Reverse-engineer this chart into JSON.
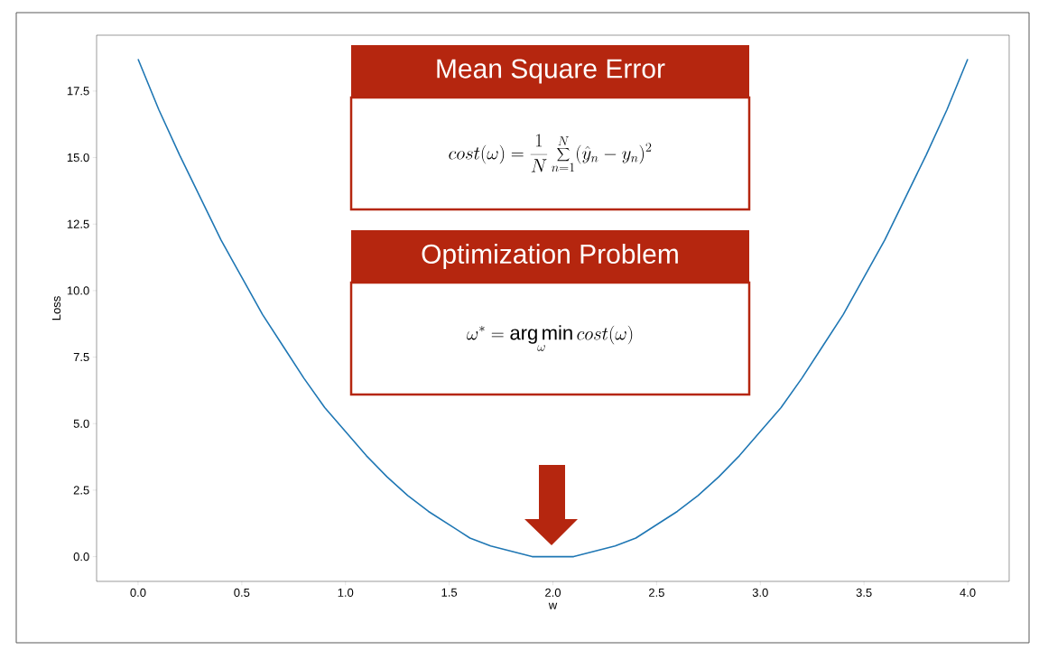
{
  "chart_data": {
    "type": "line",
    "xlabel": "w",
    "ylabel": "Loss",
    "x": [
      0,
      0.1,
      0.2,
      0.3,
      0.4,
      0.5,
      0.6,
      0.7,
      0.8,
      0.9,
      1.0,
      1.1,
      1.2,
      1.3,
      1.4,
      1.5,
      1.6,
      1.7,
      1.8,
      1.9,
      2.0,
      2.1,
      2.2,
      2.3,
      2.4,
      2.5,
      2.6,
      2.7,
      2.8,
      2.9,
      3.0,
      3.1,
      3.2,
      3.3,
      3.4,
      3.5,
      3.6,
      3.7,
      3.8,
      3.9,
      4.0
    ],
    "values": [
      18.7,
      16.8,
      15.1,
      13.5,
      11.9,
      10.5,
      9.1,
      7.9,
      6.7,
      5.6,
      4.7,
      3.8,
      3.0,
      2.3,
      1.7,
      1.2,
      0.7,
      0.4,
      0.2,
      0.0,
      0.0,
      0.0,
      0.2,
      0.4,
      0.7,
      1.2,
      1.7,
      2.3,
      3.0,
      3.8,
      4.7,
      5.6,
      6.7,
      7.9,
      9.1,
      10.5,
      11.9,
      13.5,
      15.1,
      16.8,
      18.7
    ],
    "color": "#1f77b4",
    "xlim": [
      -0.2,
      4.2
    ],
    "ylim": [
      -0.93,
      19.6
    ],
    "xticks": [
      {
        "value": 0,
        "label": "0.0"
      },
      {
        "value": 0.5,
        "label": "0.5"
      },
      {
        "value": 1,
        "label": "1.0"
      },
      {
        "value": 1.5,
        "label": "1.5"
      },
      {
        "value": 2,
        "label": "2.0"
      },
      {
        "value": 2.5,
        "label": "2.5"
      },
      {
        "value": 3,
        "label": "3.0"
      },
      {
        "value": 3.5,
        "label": "3.5"
      },
      {
        "value": 4,
        "label": "4.0"
      }
    ],
    "yticks": [
      {
        "value": 0,
        "label": "0.0"
      },
      {
        "value": 2.5,
        "label": "2.5"
      },
      {
        "value": 5,
        "label": "5.0"
      },
      {
        "value": 7.5,
        "label": "7.5"
      },
      {
        "value": 10,
        "label": "10.0"
      },
      {
        "value": 12.5,
        "label": "12.5"
      },
      {
        "value": 15,
        "label": "15.0"
      },
      {
        "value": 17.5,
        "label": "17.5"
      }
    ],
    "annotations": [
      "Mean Square Error",
      "cost(\\omega)=\\frac{1}{N}\\sum_{n=1}^{N}(\\hat{y}_n-y_n)^2",
      "Optimization Problem",
      "\\omega^{*}=\\mathop{\\mathrm{arg\\,min}}\\limits_{\\omega} cost(\\omega)"
    ]
  }
}
